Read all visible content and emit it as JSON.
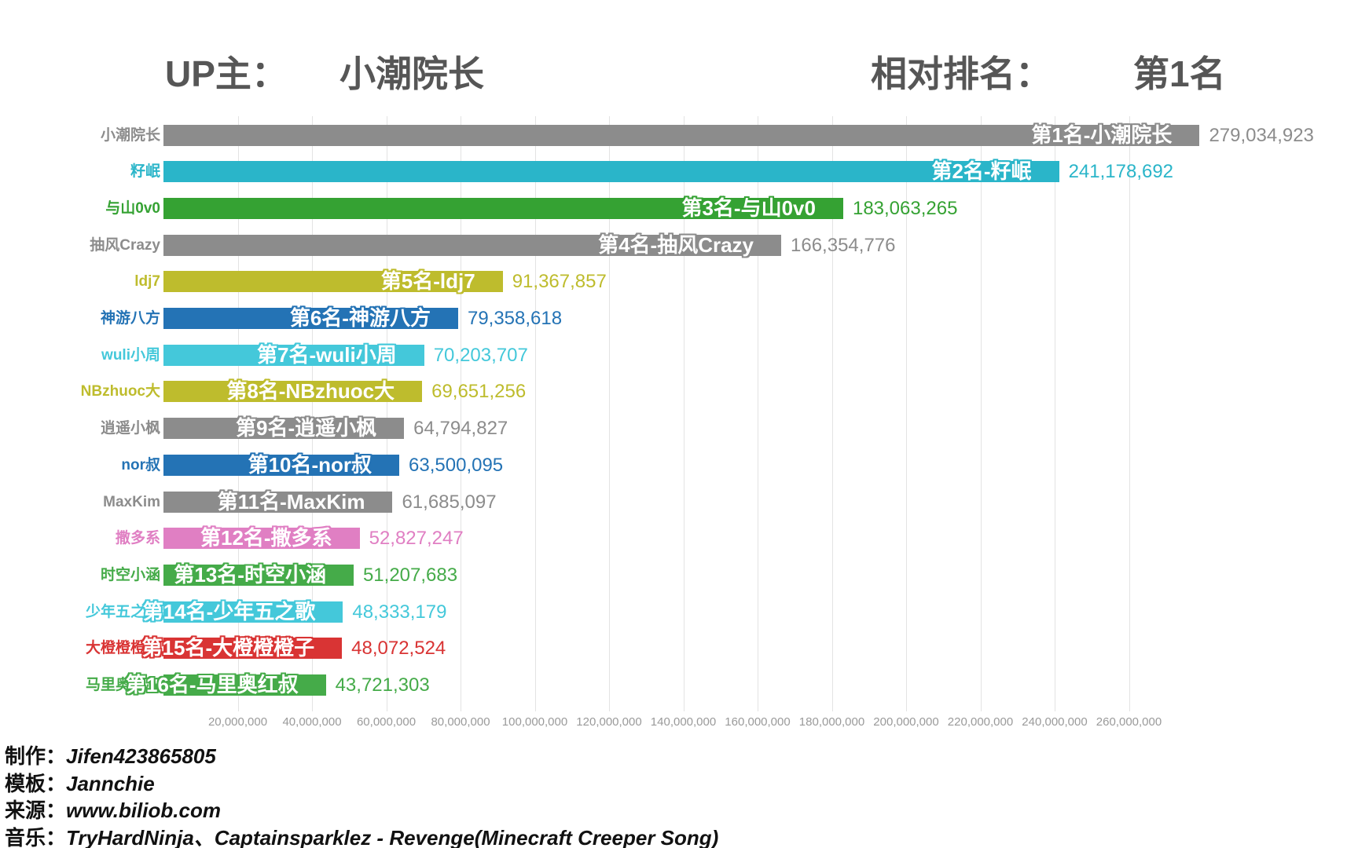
{
  "header": {
    "up_label": "UP主：",
    "up_value": "小潮院长",
    "rank_label": "相对排名：",
    "rank_value": "第1名"
  },
  "chart_data": {
    "type": "bar",
    "orientation": "horizontal",
    "title": "UP主：小潮院长 相对排名：第1名",
    "xlabel": "",
    "ylabel": "",
    "grid": true,
    "x_axis": {
      "tick_labels": [
        "20,000,000",
        "40,000,000",
        "60,000,000",
        "80,000,000",
        "100,000,000",
        "120,000,000",
        "140,000,000",
        "160,000,000",
        "180,000,000",
        "200,000,000",
        "220,000,000",
        "240,000,000",
        "260,000,000"
      ],
      "tick_values": [
        20000000,
        40000000,
        60000000,
        80000000,
        100000000,
        120000000,
        140000000,
        160000000,
        180000000,
        200000000,
        220000000,
        240000000,
        260000000
      ],
      "min": 0,
      "max_visible": 260000000
    },
    "bars": [
      {
        "name": "小潮院长",
        "rank_label": "第1名-小潮院长",
        "value": 279034923,
        "value_label": "279,034,923",
        "color": "#8c8c8c"
      },
      {
        "name": "籽岷",
        "rank_label": "第2名-籽岷",
        "value": 241178692,
        "value_label": "241,178,692",
        "color": "#2ab5c9"
      },
      {
        "name": "与山0v0",
        "rank_label": "第3名-与山0v0",
        "value": 183063265,
        "value_label": "183,063,265",
        "color": "#35a233"
      },
      {
        "name": "抽风Crazy",
        "rank_label": "第4名-抽风Crazy",
        "value": 166354776,
        "value_label": "166,354,776",
        "color": "#8c8c8c"
      },
      {
        "name": "ldj7",
        "rank_label": "第5名-ldj7",
        "value": 91367857,
        "value_label": "91,367,857",
        "color": "#bebc2d"
      },
      {
        "name": "神游八方",
        "rank_label": "第6名-神游八方",
        "value": 79358618,
        "value_label": "79,358,618",
        "color": "#2473b5"
      },
      {
        "name": "wuli小周",
        "rank_label": "第7名-wuli小周",
        "value": 70203707,
        "value_label": "70,203,707",
        "color": "#44c8da"
      },
      {
        "name": "NBzhuoc大",
        "rank_label": "第8名-NBzhuoc大",
        "value": 69651256,
        "value_label": "69,651,256",
        "color": "#bebc2d"
      },
      {
        "name": "逍遥小枫",
        "rank_label": "第9名-逍遥小枫",
        "value": 64794827,
        "value_label": "64,794,827",
        "color": "#8c8c8c"
      },
      {
        "name": "nor叔",
        "rank_label": "第10名-nor叔",
        "value": 63500095,
        "value_label": "63,500,095",
        "color": "#2473b5"
      },
      {
        "name": "MaxKim",
        "rank_label": "第11名-MaxKim",
        "value": 61685097,
        "value_label": "61,685,097",
        "color": "#8c8c8c"
      },
      {
        "name": "撒多系",
        "rank_label": "第12名-撒多系",
        "value": 52827247,
        "value_label": "52,827,247",
        "color": "#e07fc3"
      },
      {
        "name": "时空小涵",
        "rank_label": "第13名-时空小涵",
        "value": 51207683,
        "value_label": "51,207,683",
        "color": "#45ab49"
      },
      {
        "name": "少年五之歌",
        "rank_label": "第14名-少年五之歌",
        "value": 48333179,
        "value_label": "48,333,179",
        "color": "#44c8da"
      },
      {
        "name": "大橙橙橙子",
        "rank_label": "第15名-大橙橙橙子",
        "value": 48072524,
        "value_label": "48,072,524",
        "color": "#d93434"
      },
      {
        "name": "马里奥红叔",
        "rank_label": "第16名-马里奥红叔",
        "value": 43721303,
        "value_label": "43,721,303",
        "color": "#45ab49"
      }
    ]
  },
  "footer": {
    "lines": [
      {
        "label": "制作：",
        "value": "Jifen423865805"
      },
      {
        "label": "模板：",
        "value": "Jannchie"
      },
      {
        "label": "来源：",
        "value": "www.biliob.com"
      },
      {
        "label": "音乐：",
        "value": "TryHardNinja、Captainsparklez - Revenge(Minecraft Creeper Song)"
      }
    ]
  }
}
